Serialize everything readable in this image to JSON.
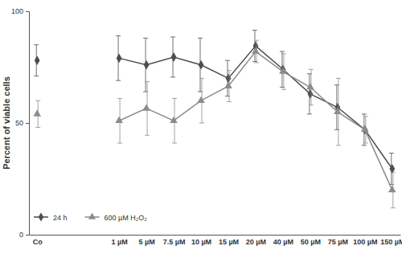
{
  "chart_data": {
    "type": "line",
    "y_label": "Percent of viable cells",
    "categories": [
      "Co",
      null,
      null,
      "1 µM",
      "5 µM",
      "7.5 µM",
      "10 µM",
      "15 µM",
      "20 µM",
      "40 µM",
      "50 µM",
      "75 µM",
      "100 µM",
      "150 µM"
    ],
    "series": [
      {
        "name": "24 h",
        "color": "#4d4d4d",
        "marker": "diamond",
        "values": [
          78,
          null,
          null,
          79,
          76,
          79.5,
          76,
          70,
          84.5,
          74,
          63,
          57,
          47,
          29.5
        ],
        "errors": [
          7,
          null,
          null,
          10,
          12,
          9,
          12,
          8,
          7,
          8,
          9,
          10,
          7,
          7
        ]
      },
      {
        "name": "600 µM H₂O₂",
        "color": "#8c8c8c",
        "marker": "triangle",
        "values": [
          54,
          null,
          null,
          51,
          56.5,
          51,
          60,
          66.5,
          82,
          73,
          66,
          55,
          47,
          20
        ],
        "errors": [
          6,
          null,
          null,
          10,
          12,
          10,
          10,
          7,
          5,
          8,
          8,
          15,
          6,
          8
        ]
      }
    ],
    "ylim": [
      0,
      100
    ],
    "yticks": [
      0,
      50,
      100
    ],
    "grid": false,
    "legend": "lower left"
  }
}
